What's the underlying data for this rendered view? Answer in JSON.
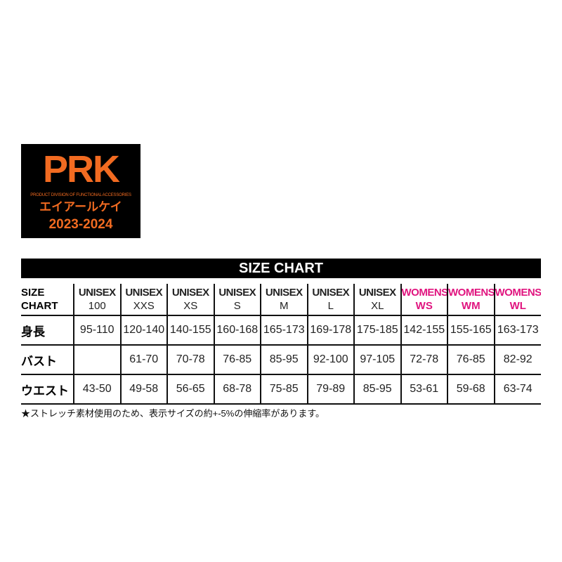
{
  "logo": {
    "mark": "PRK",
    "tagline": "PRODUCT DIVISION OF FUNCTIONAL ACCESSORIES",
    "kana": "エイアールケイ",
    "years": "2023-2024",
    "color": "#f26b21"
  },
  "title": "SIZE CHART",
  "corner": [
    "SIZE",
    "CHART"
  ],
  "columns": [
    {
      "group": "UNISEX",
      "size": "100"
    },
    {
      "group": "UNISEX",
      "size": "XXS"
    },
    {
      "group": "UNISEX",
      "size": "XS"
    },
    {
      "group": "UNISEX",
      "size": "S"
    },
    {
      "group": "UNISEX",
      "size": "M"
    },
    {
      "group": "UNISEX",
      "size": "L"
    },
    {
      "group": "UNISEX",
      "size": "XL"
    },
    {
      "group": "WOMENS",
      "size": "WS"
    },
    {
      "group": "WOMENS",
      "size": "WM"
    },
    {
      "group": "WOMENS",
      "size": "WL"
    }
  ],
  "rows": [
    {
      "label": "身長",
      "values": [
        "95-110",
        "120-140",
        "140-155",
        "160-168",
        "165-173",
        "169-178",
        "175-185",
        "142-155",
        "155-165",
        "163-173"
      ]
    },
    {
      "label": "バスト",
      "values": [
        "",
        "61-70",
        "70-78",
        "76-85",
        "85-95",
        "92-100",
        "97-105",
        "72-78",
        "76-85",
        "82-92"
      ]
    },
    {
      "label": "ウエスト",
      "values": [
        "43-50",
        "49-58",
        "56-65",
        "68-78",
        "75-85",
        "79-89",
        "85-95",
        "53-61",
        "59-68",
        "63-74"
      ]
    }
  ],
  "note": "★ストレッチ素材使用のため、表示サイズの約+-5%の伸縮率があります。",
  "colors": {
    "womens": "#e0147f"
  }
}
